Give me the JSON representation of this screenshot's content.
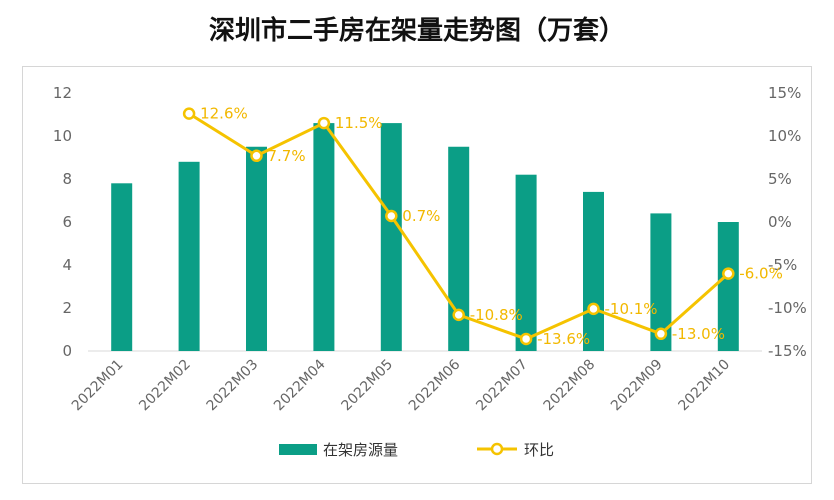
{
  "chart_data": {
    "type": "bar",
    "title": "深圳市二手房在架量走势图（万套）",
    "categories": [
      "2022M01",
      "2022M02",
      "2022M03",
      "2022M04",
      "2022M05",
      "2022M06",
      "2022M07",
      "2022M08",
      "2022M09",
      "2022M10"
    ],
    "series": [
      {
        "name": "在架房源量",
        "type": "bar",
        "axis": "left",
        "color": "#0b9e86",
        "values": [
          7.8,
          8.8,
          9.5,
          10.6,
          10.6,
          9.5,
          8.2,
          7.4,
          6.4,
          6.0
        ]
      },
      {
        "name": "环比",
        "type": "line",
        "axis": "right",
        "color": "#f5c300",
        "values": [
          null,
          12.6,
          7.7,
          11.5,
          0.7,
          -10.8,
          -13.6,
          -10.1,
          -13.0,
          -6.0
        ],
        "labels": [
          "",
          "12.6%",
          "7.7%",
          "11.5%",
          "0.7%",
          "-10.8%",
          "-13.6%",
          "-10.1%",
          "-13.0%",
          "-6.0%"
        ]
      }
    ],
    "left_axis": {
      "ylim": [
        0,
        12
      ],
      "ticks": [
        "0",
        "2",
        "4",
        "6",
        "8",
        "10",
        "12"
      ]
    },
    "right_axis": {
      "ylim": [
        -15,
        15
      ],
      "ticks": [
        "-15%",
        "-10%",
        "-5%",
        "0%",
        "5%",
        "10%",
        "15%"
      ]
    },
    "legend": {
      "position": "bottom"
    },
    "grid": false
  }
}
